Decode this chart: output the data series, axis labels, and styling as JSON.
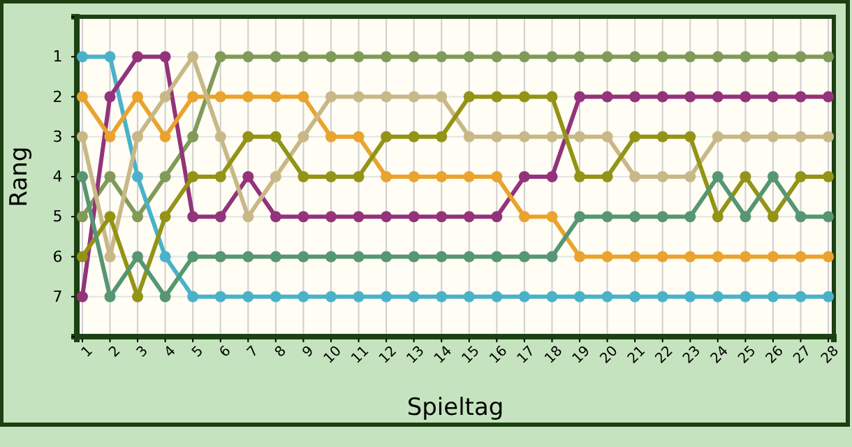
{
  "chart_data": {
    "type": "line",
    "xlabel": "Spieltag",
    "ylabel": "Rang",
    "x": [
      1,
      2,
      3,
      4,
      5,
      6,
      7,
      8,
      9,
      10,
      11,
      12,
      13,
      14,
      15,
      16,
      17,
      18,
      19,
      20,
      21,
      22,
      23,
      24,
      25,
      26,
      27,
      28
    ],
    "xlim": [
      0.8,
      28.2
    ],
    "xticks": [
      1,
      2,
      3,
      4,
      5,
      6,
      7,
      8,
      9,
      10,
      11,
      12,
      13,
      14,
      15,
      16,
      17,
      18,
      19,
      20,
      21,
      22,
      23,
      24,
      25,
      26,
      27,
      28
    ],
    "ylim": [
      8,
      0
    ],
    "yticks": [
      {
        "value": 0,
        "label": null
      },
      1,
      2,
      3,
      4,
      5,
      6,
      7,
      {
        "value": 8,
        "label": null
      }
    ],
    "grid": true,
    "marker": "circle",
    "line_style": "solid",
    "series": [
      {
        "color": "#809a58",
        "values": [
          5,
          4,
          5,
          4,
          3,
          1,
          1,
          1,
          1,
          1,
          1,
          1,
          1,
          1,
          1,
          1,
          1,
          1,
          1,
          1,
          1,
          1,
          1,
          1,
          1,
          1,
          1,
          1
        ]
      },
      {
        "color": "#4ab2c8",
        "values": [
          1,
          1,
          4,
          6,
          7,
          7,
          7,
          7,
          7,
          7,
          7,
          7,
          7,
          7,
          7,
          7,
          7,
          7,
          7,
          7,
          7,
          7,
          7,
          7,
          7,
          7,
          7,
          7
        ]
      },
      {
        "color": "#93337b",
        "values": [
          7,
          2,
          1,
          1,
          5,
          5,
          4,
          5,
          5,
          5,
          5,
          5,
          5,
          5,
          5,
          5,
          4,
          4,
          2,
          2,
          2,
          2,
          2,
          2,
          2,
          2,
          2,
          2
        ]
      },
      {
        "color": "#e9a32e",
        "values": [
          2,
          3,
          2,
          3,
          2,
          2,
          2,
          2,
          2,
          3,
          3,
          4,
          4,
          4,
          4,
          4,
          5,
          5,
          6,
          6,
          6,
          6,
          6,
          6,
          6,
          6,
          6,
          6
        ]
      },
      {
        "color": "#c9b887",
        "values": [
          3,
          6,
          3,
          2,
          1,
          3,
          5,
          4,
          3,
          2,
          2,
          2,
          2,
          2,
          3,
          3,
          3,
          3,
          3,
          3,
          4,
          4,
          4,
          3,
          3,
          3,
          3,
          3
        ]
      },
      {
        "color": "#939316",
        "values": [
          6,
          5,
          7,
          5,
          4,
          4,
          3,
          3,
          4,
          4,
          4,
          3,
          3,
          3,
          2,
          2,
          2,
          2,
          4,
          4,
          3,
          3,
          3,
          5,
          4,
          5,
          4,
          4
        ]
      },
      {
        "color": "#569672",
        "values": [
          4,
          7,
          6,
          7,
          6,
          6,
          6,
          6,
          6,
          6,
          6,
          6,
          6,
          6,
          6,
          6,
          6,
          6,
          5,
          5,
          5,
          5,
          5,
          4,
          5,
          4,
          5,
          5
        ]
      }
    ]
  }
}
